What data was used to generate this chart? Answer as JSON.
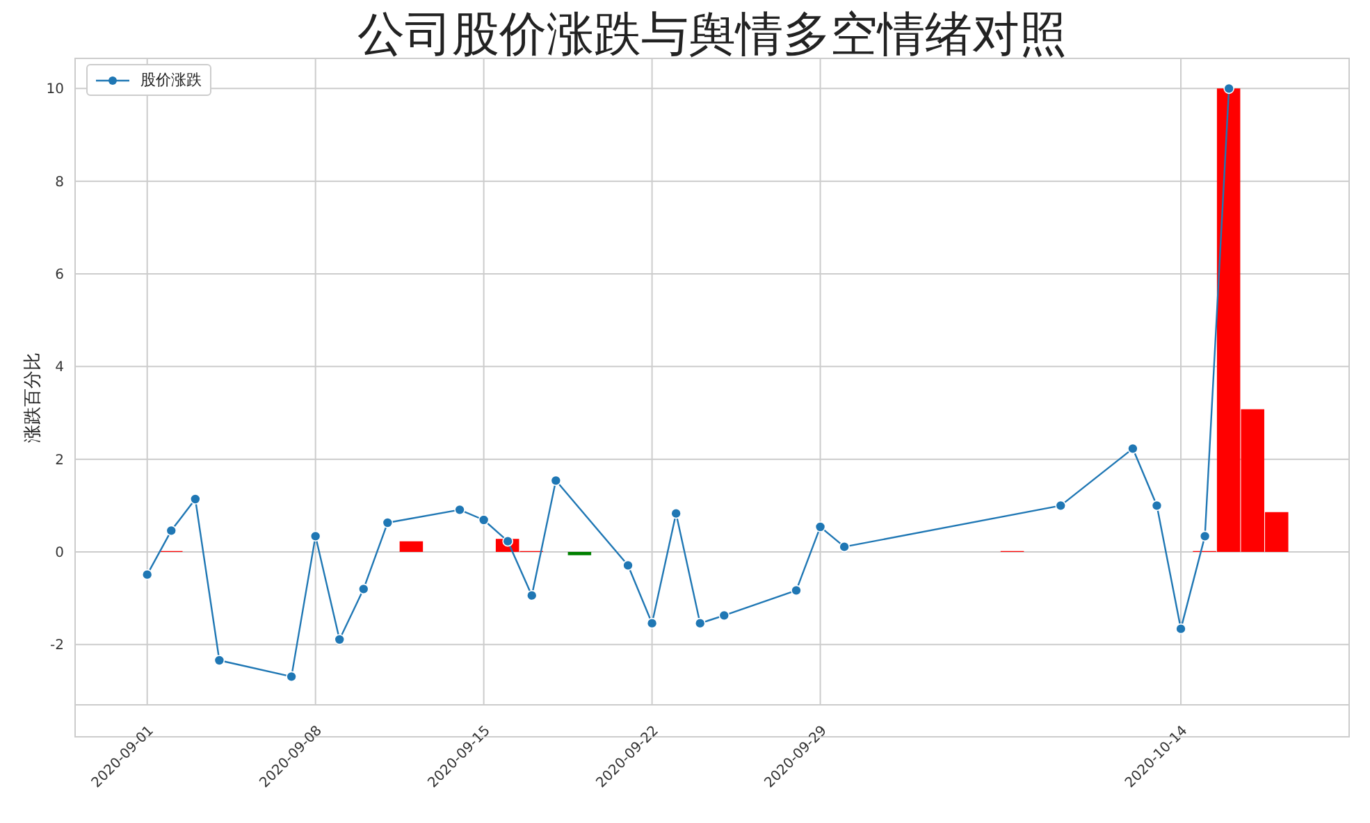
{
  "chart_data": {
    "type": "line",
    "title": "公司股价涨跌与舆情多空情绪对照",
    "ylabel": "涨跌百分比",
    "xlim": [
      "2020-08-29",
      "2020-10-21"
    ],
    "xticks": [
      "2020-09-01",
      "2020-09-08",
      "2020-09-15",
      "2020-09-22",
      "2020-09-29",
      "2020-10-14"
    ],
    "ylim": [
      -3.3,
      10.65
    ],
    "yticks": [
      -2,
      0,
      2,
      4,
      6,
      8,
      10
    ],
    "grid": true,
    "legend": "top left",
    "series": [
      {
        "name": "股价涨跌",
        "color": "#1f77b4",
        "marker": "circle",
        "line_style": "solid",
        "x": [
          "2020-09-01",
          "2020-09-02",
          "2020-09-03",
          "2020-09-04",
          "2020-09-07",
          "2020-09-08",
          "2020-09-09",
          "2020-09-10",
          "2020-09-11",
          "2020-09-14",
          "2020-09-15",
          "2020-09-16",
          "2020-09-17",
          "2020-09-18",
          "2020-09-21",
          "2020-09-22",
          "2020-09-23",
          "2020-09-24",
          "2020-09-25",
          "2020-09-28",
          "2020-09-29",
          "2020-09-30",
          "2020-10-09",
          "2020-10-12",
          "2020-10-13",
          "2020-10-14",
          "2020-10-15",
          "2020-10-16"
        ],
        "values": [
          -0.49,
          0.46,
          1.14,
          -2.34,
          -2.69,
          0.34,
          -1.89,
          -0.8,
          0.63,
          0.91,
          0.69,
          0.23,
          -0.94,
          1.54,
          -0.29,
          -1.54,
          0.83,
          -1.54,
          -1.37,
          -0.83,
          0.54,
          0.11,
          1.0,
          2.23,
          1.0,
          -1.66,
          0.34,
          10.0
        ]
      },
      {
        "type": "bar",
        "x": [
          "2020-09-02",
          "2020-09-12",
          "2020-09-16",
          "2020-09-17",
          "2020-09-19",
          "2020-10-07",
          "2020-10-15",
          "2020-10-16",
          "2020-10-17",
          "2020-10-18"
        ],
        "values": [
          0.02,
          0.23,
          0.28,
          0.02,
          -0.07,
          0.02,
          0.02,
          10.0,
          3.08,
          0.86
        ],
        "colors": [
          "#ff0000",
          "#ff0000",
          "#ff0000",
          "#ff0000",
          "#008000",
          "#ff0000",
          "#ff0000",
          "#ff0000",
          "#ff0000",
          "#ff0000"
        ]
      }
    ]
  }
}
